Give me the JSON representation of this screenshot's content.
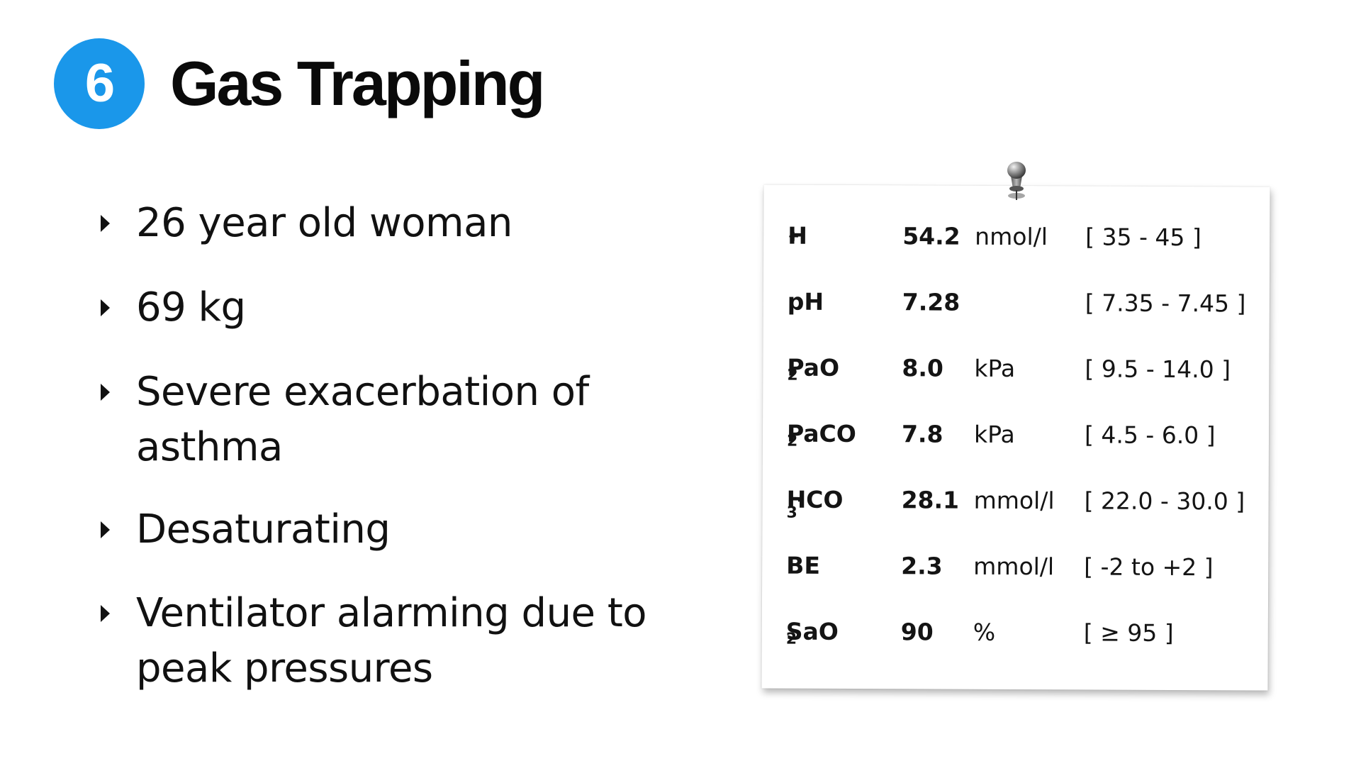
{
  "slide": {
    "badge_number": "6",
    "title": "Gas Trapping",
    "accent_color": "#1a97ea"
  },
  "bullets": [
    {
      "lines": [
        "26 year old woman"
      ]
    },
    {
      "lines": [
        "69 kg"
      ]
    },
    {
      "lines": [
        "Severe exacerbation of",
        "asthma"
      ]
    },
    {
      "lines": [
        "Desaturating"
      ]
    },
    {
      "lines": [
        "Ventilator alarming due to",
        "peak pressures"
      ]
    }
  ],
  "bullet_icon": "triangle-right-icon",
  "lab_results": {
    "pin_icon": "pushpin-icon",
    "rows": [
      {
        "name": "H",
        "sup": "+",
        "sub": "",
        "value": "54.2",
        "unit": "nmol/l",
        "range": "[ 35 - 45 ]"
      },
      {
        "name": "pH",
        "sup": "",
        "sub": "",
        "value": "7.28",
        "unit": "",
        "range": "[ 7.35 - 7.45 ]"
      },
      {
        "name": "PaO",
        "sup": "",
        "sub": "2",
        "value": "8.0",
        "unit": "kPa",
        "range": "[ 9.5 - 14.0 ]"
      },
      {
        "name": "PaCO",
        "sup": "",
        "sub": "2",
        "value": "7.8",
        "unit": "kPa",
        "range": "[ 4.5 - 6.0 ]"
      },
      {
        "name": "HCO",
        "sup": "-",
        "sub": "3",
        "value": "28.1",
        "unit": "mmol/l",
        "range": "[ 22.0 - 30.0 ]"
      },
      {
        "name": "BE",
        "sup": "",
        "sub": "",
        "value": "2.3",
        "unit": "mmol/l",
        "range": "[ -2 to +2 ]"
      },
      {
        "name": "SaO",
        "sup": "",
        "sub": "2",
        "value": "90",
        "unit": "%",
        "range": "[ ≥ 95 ]"
      }
    ]
  }
}
